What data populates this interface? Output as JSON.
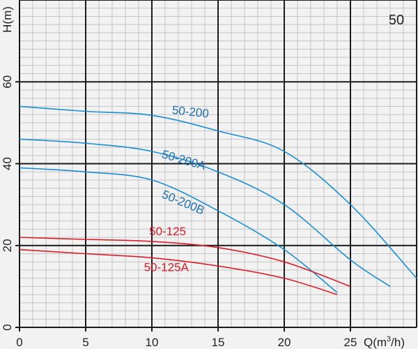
{
  "chart_data": {
    "type": "line",
    "corner_label": "50",
    "ylabel": "H(m)",
    "xlabel_main": "Q(m",
    "xlabel_sup": "3",
    "xlabel_tail": "/h)",
    "xlim": [
      0,
      30
    ],
    "ylim": [
      0,
      80
    ],
    "x_ticks": [
      0,
      5,
      10,
      15,
      20,
      25
    ],
    "x_tick_labels": [
      "0",
      "5",
      "10",
      "15",
      "20",
      "25"
    ],
    "y_ticks": [
      0,
      20,
      40,
      60
    ],
    "y_tick_labels": [
      "0",
      "20",
      "40",
      "60"
    ],
    "grid": true,
    "colors": {
      "blue": "#1a8fd0",
      "blue_text": "#1f6fb0",
      "red": "#d81e2a"
    },
    "series": [
      {
        "name": "50-200",
        "color": "#1a8fd0",
        "label_color": "#1f6fb0",
        "points": [
          [
            0,
            54
          ],
          [
            5,
            52.8
          ],
          [
            10,
            51.8
          ],
          [
            15,
            48
          ],
          [
            20,
            43
          ],
          [
            25,
            30
          ],
          [
            30,
            12
          ]
        ]
      },
      {
        "name": "50-200A",
        "color": "#1a8fd0",
        "label_color": "#1f6fb0",
        "points": [
          [
            0,
            46
          ],
          [
            5,
            45
          ],
          [
            10,
            43
          ],
          [
            15,
            38
          ],
          [
            20,
            30
          ],
          [
            25,
            16.5
          ],
          [
            28,
            10
          ]
        ]
      },
      {
        "name": "50-200B",
        "color": "#1a8fd0",
        "label_color": "#1f6fb0",
        "points": [
          [
            0,
            39
          ],
          [
            5,
            38
          ],
          [
            10,
            36
          ],
          [
            15,
            28.5
          ],
          [
            20,
            19
          ],
          [
            24,
            8.5
          ]
        ]
      },
      {
        "name": "50-125",
        "color": "#d81e2a",
        "label_color": "#d81e2a",
        "points": [
          [
            0,
            22
          ],
          [
            5,
            21.5
          ],
          [
            10,
            21
          ],
          [
            15,
            19.5
          ],
          [
            20,
            16
          ],
          [
            25,
            10
          ]
        ]
      },
      {
        "name": "50-125A",
        "color": "#d81e2a",
        "label_color": "#d81e2a",
        "points": [
          [
            0,
            19
          ],
          [
            5,
            18
          ],
          [
            10,
            17
          ],
          [
            15,
            15
          ],
          [
            20,
            12
          ],
          [
            24,
            8
          ]
        ]
      }
    ]
  }
}
